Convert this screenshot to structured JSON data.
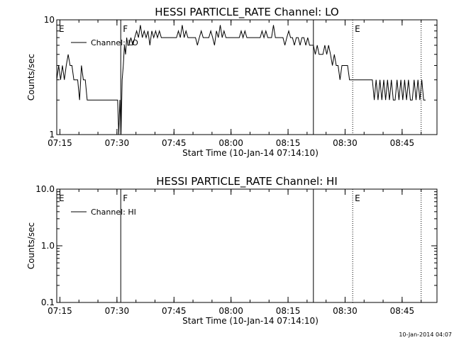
{
  "chart_data": [
    {
      "type": "line",
      "title": "HESSI PARTICLE_RATE Channel: LO",
      "xlabel": "Start Time (10-Jan-14 07:14:10)",
      "ylabel": "Counts/sec",
      "y_scale": "log",
      "ylim": [
        1,
        10
      ],
      "xlim_minutes": [
        0,
        100
      ],
      "x_tick_labels": [
        "07:15",
        "07:30",
        "07:45",
        "08:00",
        "08:15",
        "08:30",
        "08:45"
      ],
      "y_tick_labels": [
        "1",
        "10"
      ],
      "legend": {
        "label": "Channel: LO",
        "placement": "top-left"
      },
      "markers": [
        {
          "label": "E",
          "time": "07:14:10",
          "style": "none"
        },
        {
          "label": "F",
          "time": "07:31:00",
          "style": "solid"
        },
        {
          "label": "",
          "time": "08:21:40",
          "style": "solid"
        },
        {
          "label": "E",
          "time": "08:32:00",
          "style": "dotted"
        },
        {
          "label": "",
          "time": "08:50:00",
          "style": "dotted"
        }
      ],
      "series": [
        {
          "name": "Channel: LO",
          "x": [
            0.0,
            0.5,
            1.0,
            1.5,
            2.0,
            2.5,
            3.0,
            3.5,
            4.0,
            4.5,
            5.0,
            5.5,
            6.0,
            6.5,
            7.0,
            7.5,
            8.0,
            8.5,
            9.0,
            9.5,
            10.0,
            10.5,
            11.0,
            12.0,
            13.0,
            14.0,
            15.0,
            16.0,
            16.3,
            16.6,
            16.9,
            17.2,
            17.5,
            17.8,
            18.1,
            18.4,
            18.7,
            19.0,
            19.5,
            20.0,
            20.5,
            21.0,
            21.5,
            22.0,
            22.5,
            23.0,
            23.5,
            24.0,
            24.5,
            25.0,
            25.5,
            26.0,
            26.5,
            27.0,
            27.5,
            28.0,
            28.5,
            29.0,
            29.5,
            30.0,
            30.5,
            31.0,
            31.5,
            32.0,
            32.5,
            33.0,
            33.5,
            34.0,
            34.5,
            35.0,
            35.5,
            36.0,
            36.5,
            37.0,
            37.5,
            38.0,
            38.5,
            39.0,
            39.5,
            40.0,
            40.5,
            41.0,
            41.5,
            42.0,
            42.5,
            43.0,
            43.5,
            44.0,
            44.5,
            45.0,
            45.5,
            46.0,
            46.5,
            47.0,
            47.5,
            48.0,
            48.5,
            49.0,
            49.5,
            50.0,
            50.5,
            51.0,
            51.5,
            52.0,
            52.5,
            53.0,
            53.5,
            54.0,
            54.5,
            55.0,
            55.5,
            56.0,
            56.5,
            57.0,
            57.5,
            58.0,
            58.5,
            59.0,
            59.5,
            60.0,
            60.5,
            61.0,
            61.5,
            62.0,
            62.5,
            63.0,
            63.5,
            64.0,
            64.5,
            65.0,
            65.5,
            66.0,
            66.5,
            67.0,
            67.5,
            68.0,
            68.5,
            69.0,
            69.5,
            70.0,
            70.5,
            71.0,
            71.5,
            72.0,
            72.5,
            73.0,
            73.5,
            74.0,
            74.5,
            75.0,
            75.5,
            76.0,
            76.5,
            77.0,
            78.0,
            79.0,
            80.0,
            81.0,
            82.0,
            83.0,
            83.5,
            84.0,
            84.5,
            85.0,
            85.5,
            86.0,
            86.5,
            87.0,
            87.5,
            88.0,
            88.5,
            89.0,
            89.5,
            90.0,
            90.5,
            91.0,
            91.5,
            92.0,
            92.5,
            93.0,
            93.5,
            94.0,
            94.5,
            95.0,
            95.5,
            96.0,
            96.5,
            97.0
          ],
          "y": [
            3.0,
            4.0,
            3.0,
            4.0,
            3.0,
            4.0,
            5.0,
            4.0,
            4.0,
            3.0,
            3.0,
            3.0,
            2.0,
            4.0,
            3.0,
            3.0,
            2.0,
            2.0,
            2.0,
            2.0,
            2.0,
            2.0,
            2.0,
            2.0,
            2.0,
            2.0,
            2.0,
            2.0,
            1.0,
            2.0,
            1.0,
            3.0,
            4.0,
            6.0,
            5.0,
            7.0,
            6.0,
            6.0,
            7.0,
            6.0,
            7.0,
            8.0,
            7.0,
            9.0,
            7.0,
            8.0,
            7.0,
            8.0,
            6.0,
            8.0,
            7.0,
            8.0,
            7.0,
            8.0,
            7.0,
            7.0,
            7.0,
            7.0,
            7.0,
            7.0,
            7.0,
            7.0,
            7.0,
            8.0,
            7.0,
            9.0,
            7.0,
            8.0,
            7.0,
            7.0,
            7.0,
            7.0,
            7.0,
            6.0,
            7.0,
            8.0,
            7.0,
            7.0,
            7.0,
            7.0,
            8.0,
            7.0,
            6.0,
            8.0,
            7.0,
            9.0,
            7.0,
            8.0,
            7.0,
            7.0,
            7.0,
            7.0,
            7.0,
            7.0,
            7.0,
            7.0,
            8.0,
            7.0,
            8.0,
            7.0,
            7.0,
            7.0,
            7.0,
            7.0,
            7.0,
            7.0,
            7.0,
            8.0,
            7.0,
            8.0,
            7.0,
            7.0,
            7.0,
            9.0,
            7.0,
            7.0,
            7.0,
            7.0,
            7.0,
            6.0,
            7.0,
            8.0,
            7.0,
            7.0,
            6.0,
            7.0,
            7.0,
            6.0,
            7.0,
            7.0,
            6.0,
            7.0,
            6.0,
            6.0,
            6.0,
            5.0,
            6.0,
            5.0,
            5.0,
            5.0,
            6.0,
            5.0,
            6.0,
            5.0,
            4.0,
            5.0,
            4.0,
            4.0,
            3.0,
            4.0,
            4.0,
            4.0,
            4.0,
            3.0,
            3.0,
            3.0,
            3.0,
            3.0,
            3.0,
            3.0,
            2.0,
            3.0,
            2.0,
            3.0,
            2.0,
            3.0,
            2.0,
            3.0,
            2.0,
            3.0,
            2.0,
            2.0,
            3.0,
            2.0,
            3.0,
            2.0,
            3.0,
            2.0,
            3.0,
            2.0,
            2.0,
            3.0,
            2.0,
            3.0,
            2.0,
            3.0,
            2.0,
            2.0
          ]
        }
      ]
    },
    {
      "type": "line",
      "title": "HESSI PARTICLE_RATE Channel: HI",
      "xlabel": "Start Time (10-Jan-14 07:14:10)",
      "ylabel": "Counts/sec",
      "y_scale": "log",
      "ylim": [
        0.1,
        10
      ],
      "xlim_minutes": [
        0,
        100
      ],
      "x_tick_labels": [
        "07:15",
        "07:30",
        "07:45",
        "08:00",
        "08:15",
        "08:30",
        "08:45"
      ],
      "y_tick_labels": [
        "0.1",
        "1.0",
        "10.0"
      ],
      "legend": {
        "label": "Channel: HI",
        "placement": "top-left"
      },
      "markers": [
        {
          "label": "E",
          "time": "07:14:10",
          "style": "none"
        },
        {
          "label": "F",
          "time": "07:31:00",
          "style": "solid"
        },
        {
          "label": "",
          "time": "08:21:40",
          "style": "solid"
        },
        {
          "label": "E",
          "time": "08:32:00",
          "style": "dotted"
        },
        {
          "label": "",
          "time": "08:50:00",
          "style": "dotted"
        }
      ],
      "series": [
        {
          "name": "Channel: HI",
          "x": [],
          "y": []
        }
      ]
    }
  ],
  "footer": {
    "timestamp": "10-Jan-2014 04:07"
  }
}
